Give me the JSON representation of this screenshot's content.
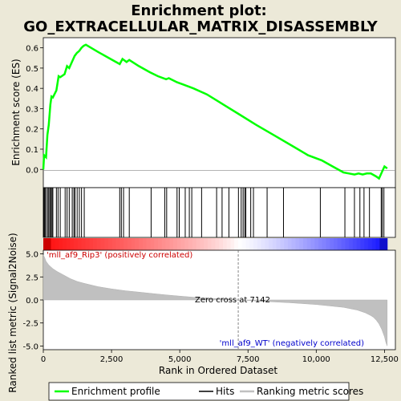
{
  "title_line1": "Enrichment plot:",
  "title_line2": "GO_EXTRACELLULAR_MATRIX_DISASSEMBLY",
  "colors": {
    "background": "#ece9d8",
    "enrichment_line": "#00ff00",
    "metric_fill": "#c0c0c0",
    "positive_label": "#cc0000",
    "negative_label": "#0000cc",
    "hits": "#000000"
  },
  "chart_data": [
    {
      "type": "line",
      "name": "enrichment-profile",
      "ylabel": "Enrichment score (ES)",
      "xlim": [
        0,
        12900
      ],
      "ylim": [
        -0.09,
        0.65
      ],
      "yticks": [
        "0.0",
        "0.1",
        "0.2",
        "0.3",
        "0.4",
        "0.5",
        "0.6"
      ],
      "grid": false,
      "x": [
        0,
        30,
        100,
        150,
        200,
        260,
        300,
        350,
        480,
        560,
        620,
        780,
        870,
        950,
        1050,
        1150,
        1230,
        1320,
        1400,
        1480,
        1560,
        2000,
        2600,
        2800,
        2900,
        3050,
        3150,
        3500,
        3900,
        4200,
        4500,
        4600,
        4900,
        5100,
        5500,
        6000,
        6600,
        7200,
        7800,
        8500,
        9200,
        9700,
        10200,
        10600,
        11000,
        11200,
        11400,
        11550,
        11700,
        11850,
        12000,
        12200,
        12300,
        12400,
        12500,
        12600
      ],
      "y": [
        0.0,
        0.07,
        0.06,
        0.17,
        0.22,
        0.32,
        0.36,
        0.355,
        0.39,
        0.46,
        0.455,
        0.47,
        0.51,
        0.5,
        0.53,
        0.56,
        0.575,
        0.585,
        0.6,
        0.61,
        0.615,
        0.58,
        0.535,
        0.52,
        0.545,
        0.53,
        0.54,
        0.51,
        0.48,
        0.46,
        0.445,
        0.45,
        0.43,
        0.42,
        0.4,
        0.37,
        0.32,
        0.27,
        0.22,
        0.165,
        0.11,
        0.07,
        0.045,
        0.015,
        -0.015,
        -0.02,
        -0.025,
        -0.02,
        -0.025,
        -0.02,
        -0.02,
        -0.035,
        -0.045,
        -0.015,
        0.015,
        0.005
      ]
    },
    {
      "type": "scatter",
      "name": "hits",
      "x": [
        10,
        30,
        60,
        100,
        160,
        200,
        240,
        280,
        320,
        350,
        480,
        540,
        620,
        800,
        870,
        950,
        1060,
        1120,
        1160,
        1240,
        1320,
        1400,
        1500,
        2800,
        2860,
        2940,
        3150,
        3950,
        4450,
        4520,
        4900,
        4980,
        5200,
        5350,
        5440,
        5800,
        6350,
        6550,
        6800,
        7150,
        7250,
        7320,
        7380,
        7420,
        7600,
        7700,
        8200,
        8800,
        10150,
        11050,
        11400,
        11600,
        11750,
        11950,
        12380,
        12420,
        12480
      ]
    },
    {
      "type": "area",
      "name": "ranked-list-metric",
      "xlabel": "Rank in Ordered Dataset",
      "ylabel": "Ranked list metric (Signal2Noise)",
      "xlim": [
        0,
        12900
      ],
      "ylim": [
        -5.4,
        5.4
      ],
      "yticks": [
        "-5.0",
        "-2.5",
        "0.0",
        "2.5",
        "5.0"
      ],
      "xticks": [
        "0",
        "2,500",
        "5,000",
        "7,500",
        "10,000",
        "12,500"
      ],
      "zero_cross": 7142,
      "x": [
        0,
        50,
        100,
        200,
        350,
        500,
        750,
        1000,
        1250,
        1500,
        2000,
        2500,
        3000,
        3500,
        4000,
        4500,
        5000,
        5500,
        6000,
        6500,
        7000,
        7142,
        7500,
        8000,
        9000,
        10000,
        11000,
        11500,
        11800,
        12000,
        12100,
        12200,
        12300,
        12400,
        12500,
        12550,
        12600
      ],
      "y": [
        4.9,
        4.6,
        4.2,
        3.8,
        3.4,
        3.1,
        2.7,
        2.3,
        2.0,
        1.8,
        1.45,
        1.2,
        1.0,
        0.85,
        0.7,
        0.55,
        0.42,
        0.3,
        0.2,
        0.12,
        0.04,
        0.0,
        -0.06,
        -0.15,
        -0.3,
        -0.5,
        -0.8,
        -1.1,
        -1.4,
        -1.7,
        -1.9,
        -2.2,
        -2.6,
        -3.2,
        -4.0,
        -4.6,
        -5.0
      ]
    }
  ],
  "labels": {
    "positive": "'mll_af9_Rip3' (positively correlated)",
    "negative": "'mll_af9_WT' (negatively correlated)",
    "zero_cross": "Zero cross at 7142"
  },
  "legend": {
    "items": [
      "Enrichment profile",
      "Hits",
      "Ranking metric scores"
    ]
  }
}
